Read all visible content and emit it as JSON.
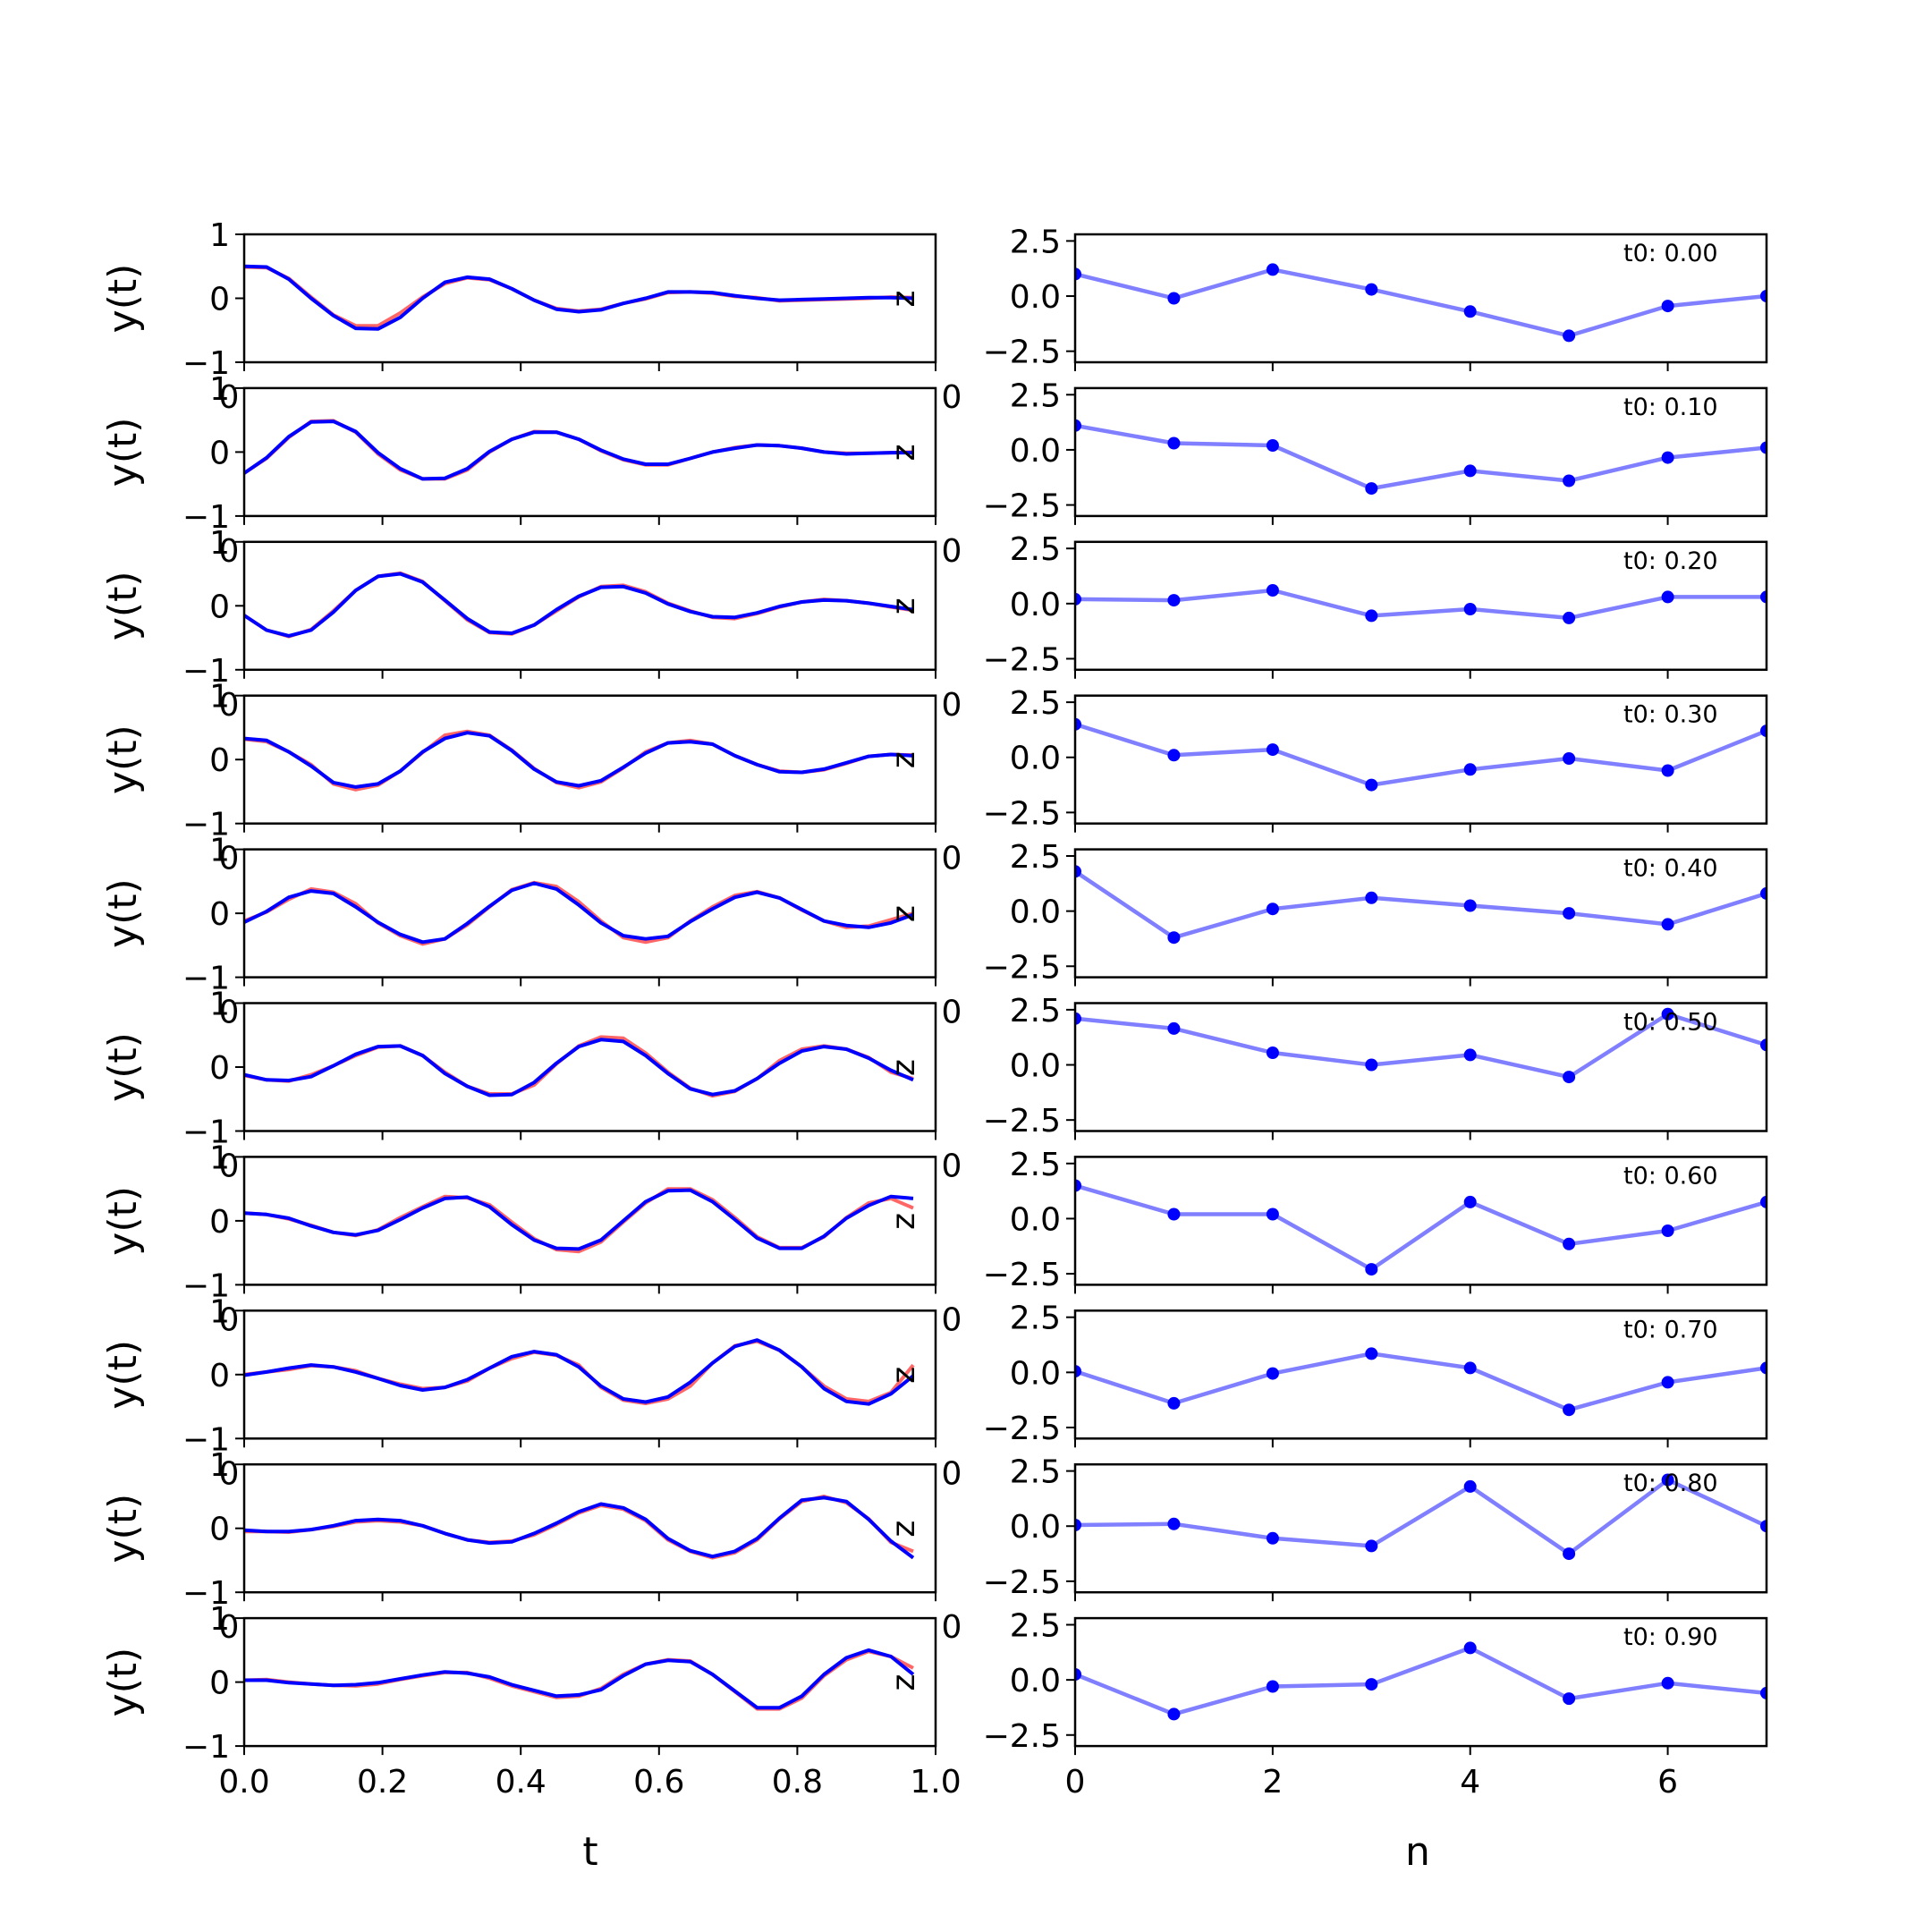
{
  "chart_data": {
    "type": "line",
    "left_column": {
      "xlabel": "t",
      "ylabel": "y(t)",
      "xlim": [
        0.0,
        1.0
      ],
      "ylim": [
        -1,
        1
      ],
      "xticks": [
        "0.0",
        "0.2",
        "0.4",
        "0.6",
        "0.8",
        "1.0"
      ],
      "yticks": [
        "1",
        "0",
        "−1"
      ],
      "side_label": "z",
      "overlap_tick_label": "0",
      "colors": {
        "a": "#ff0000",
        "b": "#0000ff"
      },
      "x": [
        0.0,
        0.0323,
        0.0645,
        0.0968,
        0.129,
        0.1613,
        0.1935,
        0.2258,
        0.2581,
        0.2903,
        0.3226,
        0.3548,
        0.3871,
        0.4194,
        0.4516,
        0.4839,
        0.5161,
        0.5484,
        0.5806,
        0.6129,
        0.6452,
        0.6774,
        0.7097,
        0.7419,
        0.7742,
        0.8065,
        0.8387,
        0.871,
        0.9032,
        0.9355,
        0.9677
      ],
      "panels": [
        {
          "a": [
            0.49,
            0.48,
            0.31,
            0.02,
            -0.26,
            -0.43,
            -0.43,
            -0.23,
            0.02,
            0.23,
            0.32,
            0.29,
            0.15,
            -0.03,
            -0.16,
            -0.2,
            -0.17,
            -0.08,
            -0.01,
            0.09,
            0.1,
            0.08,
            0.03,
            0.01,
            -0.04,
            -0.03,
            -0.02,
            -0.01,
            0.0,
            0.02,
            0.01
          ],
          "b": [
            0.5,
            0.49,
            0.3,
            0.0,
            -0.27,
            -0.47,
            -0.48,
            -0.3,
            0.0,
            0.25,
            0.33,
            0.3,
            0.15,
            -0.03,
            -0.17,
            -0.21,
            -0.18,
            -0.08,
            0.0,
            0.1,
            0.1,
            0.09,
            0.04,
            0.0,
            -0.03,
            -0.02,
            -0.01,
            0.0,
            0.01,
            0.01,
            0.0
          ]
        },
        {
          "a": [
            -0.33,
            -0.1,
            0.23,
            0.48,
            0.49,
            0.31,
            -0.03,
            -0.28,
            -0.42,
            -0.42,
            -0.28,
            0.0,
            0.2,
            0.32,
            0.31,
            0.2,
            0.02,
            -0.12,
            -0.2,
            -0.2,
            -0.1,
            0.0,
            0.07,
            0.11,
            0.1,
            0.06,
            0.0,
            -0.02,
            -0.02,
            -0.01,
            0.0
          ],
          "b": [
            -0.33,
            -0.09,
            0.24,
            0.47,
            0.48,
            0.32,
            -0.01,
            -0.26,
            -0.42,
            -0.41,
            -0.26,
            0.01,
            0.2,
            0.31,
            0.31,
            0.2,
            0.03,
            -0.11,
            -0.19,
            -0.19,
            -0.1,
            0.0,
            0.06,
            0.11,
            0.1,
            0.06,
            0.0,
            -0.03,
            -0.02,
            -0.01,
            -0.01
          ]
        },
        {
          "a": [
            -0.15,
            -0.38,
            -0.48,
            -0.37,
            -0.08,
            0.24,
            0.46,
            0.51,
            0.38,
            0.08,
            -0.22,
            -0.42,
            -0.44,
            -0.3,
            -0.08,
            0.14,
            0.3,
            0.32,
            0.22,
            0.04,
            -0.08,
            -0.18,
            -0.2,
            -0.12,
            -0.02,
            0.06,
            0.1,
            0.08,
            0.04,
            -0.02,
            -0.07
          ],
          "b": [
            -0.15,
            -0.38,
            -0.47,
            -0.38,
            -0.1,
            0.24,
            0.46,
            0.5,
            0.37,
            0.09,
            -0.2,
            -0.41,
            -0.43,
            -0.3,
            -0.06,
            0.15,
            0.29,
            0.3,
            0.2,
            0.03,
            -0.09,
            -0.17,
            -0.18,
            -0.11,
            -0.01,
            0.06,
            0.09,
            0.08,
            0.04,
            -0.01,
            -0.06
          ]
        },
        {
          "a": [
            0.32,
            0.28,
            0.12,
            -0.08,
            -0.38,
            -0.47,
            -0.4,
            -0.18,
            0.11,
            0.38,
            0.44,
            0.38,
            0.15,
            -0.14,
            -0.36,
            -0.44,
            -0.35,
            -0.13,
            0.12,
            0.26,
            0.3,
            0.24,
            0.06,
            -0.08,
            -0.18,
            -0.2,
            -0.16,
            -0.06,
            0.05,
            0.08,
            0.07
          ],
          "b": [
            0.33,
            0.3,
            0.12,
            -0.1,
            -0.36,
            -0.43,
            -0.38,
            -0.18,
            0.12,
            0.33,
            0.42,
            0.37,
            0.14,
            -0.15,
            -0.35,
            -0.41,
            -0.33,
            -0.12,
            0.1,
            0.26,
            0.28,
            0.24,
            0.06,
            -0.08,
            -0.19,
            -0.2,
            -0.15,
            -0.05,
            0.05,
            0.08,
            0.06
          ]
        },
        {
          "a": [
            -0.12,
            0.02,
            0.22,
            0.38,
            0.33,
            0.15,
            -0.15,
            -0.35,
            -0.48,
            -0.4,
            -0.18,
            0.1,
            0.37,
            0.48,
            0.42,
            0.18,
            -0.12,
            -0.38,
            -0.45,
            -0.38,
            -0.12,
            0.1,
            0.28,
            0.34,
            0.24,
            0.05,
            -0.12,
            -0.22,
            -0.2,
            -0.1,
            0.0
          ],
          "b": [
            -0.14,
            0.03,
            0.25,
            0.35,
            0.31,
            0.1,
            -0.14,
            -0.33,
            -0.45,
            -0.4,
            -0.16,
            0.11,
            0.36,
            0.47,
            0.38,
            0.13,
            -0.15,
            -0.35,
            -0.4,
            -0.36,
            -0.13,
            0.07,
            0.25,
            0.33,
            0.24,
            0.06,
            -0.12,
            -0.19,
            -0.22,
            -0.15,
            -0.02
          ]
        },
        {
          "a": [
            -0.13,
            -0.2,
            -0.22,
            -0.12,
            0.02,
            0.18,
            0.31,
            0.33,
            0.18,
            -0.08,
            -0.3,
            -0.42,
            -0.42,
            -0.28,
            0.05,
            0.33,
            0.47,
            0.45,
            0.22,
            -0.08,
            -0.33,
            -0.45,
            -0.38,
            -0.18,
            0.1,
            0.28,
            0.33,
            0.28,
            0.15,
            -0.08,
            -0.18
          ],
          "b": [
            -0.12,
            -0.2,
            -0.21,
            -0.15,
            0.02,
            0.2,
            0.32,
            0.33,
            0.18,
            -0.1,
            -0.3,
            -0.44,
            -0.43,
            -0.24,
            0.06,
            0.32,
            0.43,
            0.4,
            0.18,
            -0.1,
            -0.34,
            -0.43,
            -0.37,
            -0.18,
            0.06,
            0.25,
            0.32,
            0.28,
            0.14,
            -0.05,
            -0.2
          ]
        },
        {
          "a": [
            0.12,
            0.1,
            0.03,
            -0.07,
            -0.18,
            -0.23,
            -0.14,
            0.05,
            0.22,
            0.38,
            0.36,
            0.25,
            -0.02,
            -0.28,
            -0.45,
            -0.48,
            -0.33,
            -0.02,
            0.28,
            0.5,
            0.5,
            0.33,
            0.05,
            -0.25,
            -0.42,
            -0.42,
            -0.25,
            0.05,
            0.28,
            0.35,
            0.2
          ],
          "b": [
            0.12,
            0.1,
            0.04,
            -0.08,
            -0.18,
            -0.22,
            -0.15,
            0.02,
            0.2,
            0.35,
            0.37,
            0.22,
            -0.06,
            -0.3,
            -0.43,
            -0.44,
            -0.3,
            0.0,
            0.3,
            0.47,
            0.48,
            0.3,
            0.02,
            -0.27,
            -0.43,
            -0.43,
            -0.24,
            0.04,
            0.24,
            0.38,
            0.35
          ]
        },
        {
          "a": [
            0.0,
            0.04,
            0.08,
            0.14,
            0.12,
            0.06,
            -0.06,
            -0.15,
            -0.22,
            -0.2,
            -0.1,
            0.1,
            0.25,
            0.35,
            0.3,
            0.15,
            -0.2,
            -0.4,
            -0.45,
            -0.38,
            -0.18,
            0.18,
            0.45,
            0.52,
            0.38,
            0.12,
            -0.18,
            -0.38,
            -0.42,
            -0.28,
            0.15
          ],
          "b": [
            -0.01,
            0.04,
            0.1,
            0.15,
            0.12,
            0.04,
            -0.06,
            -0.17,
            -0.24,
            -0.2,
            -0.08,
            0.1,
            0.28,
            0.36,
            0.31,
            0.12,
            -0.18,
            -0.38,
            -0.43,
            -0.35,
            -0.12,
            0.18,
            0.44,
            0.54,
            0.38,
            0.12,
            -0.22,
            -0.42,
            -0.46,
            -0.3,
            -0.02
          ]
        },
        {
          "a": [
            -0.05,
            -0.05,
            -0.06,
            -0.02,
            0.03,
            0.1,
            0.12,
            0.1,
            0.04,
            -0.08,
            -0.18,
            -0.22,
            -0.2,
            -0.1,
            0.06,
            0.24,
            0.36,
            0.3,
            0.12,
            -0.18,
            -0.36,
            -0.46,
            -0.38,
            -0.18,
            0.15,
            0.42,
            0.5,
            0.4,
            0.15,
            -0.22,
            -0.36
          ],
          "b": [
            -0.03,
            -0.05,
            -0.05,
            -0.02,
            0.04,
            0.12,
            0.14,
            0.12,
            0.04,
            -0.08,
            -0.18,
            -0.23,
            -0.21,
            -0.08,
            0.08,
            0.26,
            0.38,
            0.32,
            0.14,
            -0.16,
            -0.35,
            -0.44,
            -0.36,
            -0.16,
            0.16,
            0.44,
            0.48,
            0.42,
            0.14,
            -0.2,
            -0.46
          ]
        },
        {
          "a": [
            0.03,
            0.04,
            0.0,
            -0.03,
            -0.05,
            -0.06,
            -0.03,
            0.04,
            0.1,
            0.15,
            0.15,
            0.06,
            -0.06,
            -0.15,
            -0.24,
            -0.22,
            -0.1,
            0.12,
            0.28,
            0.35,
            0.33,
            0.12,
            -0.15,
            -0.42,
            -0.42,
            -0.25,
            0.1,
            0.35,
            0.48,
            0.4,
            0.22
          ],
          "b": [
            0.03,
            0.03,
            -0.01,
            -0.03,
            -0.05,
            -0.04,
            -0.01,
            0.05,
            0.11,
            0.16,
            0.14,
            0.08,
            -0.04,
            -0.13,
            -0.22,
            -0.2,
            -0.12,
            0.1,
            0.28,
            0.34,
            0.32,
            0.12,
            -0.14,
            -0.4,
            -0.4,
            -0.22,
            0.12,
            0.38,
            0.5,
            0.4,
            0.12
          ]
        }
      ]
    },
    "right_column": {
      "xlabel": "n",
      "xlim": [
        0,
        7
      ],
      "ylim": [
        -3.0,
        2.8
      ],
      "xticks": [
        "0",
        "2",
        "4",
        "6"
      ],
      "yticks": [
        "2.5",
        "0.0",
        "−2.5"
      ],
      "overlap_tick_label": "0",
      "color": "#0000ff",
      "n": [
        0,
        1,
        2,
        3,
        4,
        5,
        6,
        7
      ],
      "panels": [
        {
          "label": "t0: 0.00",
          "values": [
            1.0,
            -0.1,
            1.2,
            0.3,
            -0.7,
            -1.8,
            -0.45,
            0.0
          ]
        },
        {
          "label": "t0: 0.10",
          "values": [
            1.1,
            0.3,
            0.2,
            -1.75,
            -0.95,
            -1.4,
            -0.35,
            0.1
          ]
        },
        {
          "label": "t0: 0.20",
          "values": [
            0.2,
            0.15,
            0.6,
            -0.55,
            -0.25,
            -0.65,
            0.3,
            0.3
          ]
        },
        {
          "label": "t0: 0.30",
          "values": [
            1.5,
            0.1,
            0.35,
            -1.25,
            -0.55,
            -0.05,
            -0.6,
            1.2
          ]
        },
        {
          "label": "t0: 0.40",
          "values": [
            1.8,
            -1.2,
            0.1,
            0.6,
            0.25,
            -0.1,
            -0.6,
            0.8
          ]
        },
        {
          "label": "t0: 0.50",
          "values": [
            2.1,
            1.65,
            0.55,
            0.0,
            0.45,
            -0.55,
            2.3,
            0.9
          ]
        },
        {
          "label": "t0: 0.60",
          "values": [
            1.5,
            0.2,
            0.2,
            -2.3,
            0.75,
            -1.15,
            -0.55,
            0.75
          ]
        },
        {
          "label": "t0: 0.70",
          "values": [
            0.05,
            -1.4,
            -0.05,
            0.85,
            0.2,
            -1.7,
            -0.45,
            0.2
          ]
        },
        {
          "label": "t0: 0.80",
          "values": [
            0.05,
            0.1,
            -0.55,
            -0.9,
            1.8,
            -1.25,
            2.1,
            0.0
          ]
        },
        {
          "label": "t0: 0.90",
          "values": [
            0.25,
            -1.55,
            -0.3,
            -0.2,
            1.45,
            -0.85,
            -0.15,
            -0.6
          ]
        }
      ]
    }
  }
}
